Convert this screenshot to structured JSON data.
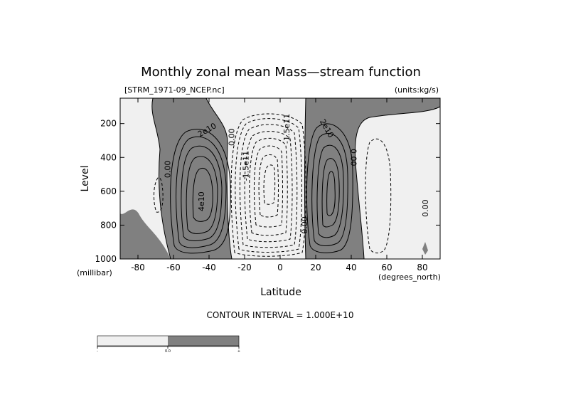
{
  "chart_data": {
    "type": "contour",
    "title": "Monthly zonal mean Mass—stream function",
    "file_label": "[STRM_1971-09_NCEP.nc]",
    "units_label": "(units:kg/s)",
    "xlabel": "Latitude",
    "ylabel": "Level",
    "x_unit_label": "(degrees_north)",
    "y_unit_label": "(millibar)",
    "contour_interval_label": "CONTOUR INTERVAL = 1.000E+10",
    "xlim": [
      -90,
      90
    ],
    "ylim": [
      1000,
      50
    ],
    "x_ticks": [
      {
        "value": -80,
        "label": "-80"
      },
      {
        "value": -60,
        "label": "-60"
      },
      {
        "value": -40,
        "label": "-40"
      },
      {
        "value": -20,
        "label": "-20"
      },
      {
        "value": 0,
        "label": "0"
      },
      {
        "value": 20,
        "label": "20"
      },
      {
        "value": 40,
        "label": "40"
      },
      {
        "value": 60,
        "label": "60"
      },
      {
        "value": 80,
        "label": "80"
      }
    ],
    "y_ticks": [
      {
        "value": 200,
        "label": "200"
      },
      {
        "value": 400,
        "label": "400"
      },
      {
        "value": 600,
        "label": "600"
      },
      {
        "value": 800,
        "label": "800"
      },
      {
        "value": 1000,
        "label": "1000"
      }
    ],
    "contour_labels": [
      {
        "text": "0.00",
        "lat": -63,
        "lev": 470,
        "rotate": -90
      },
      {
        "text": "2e10",
        "lat": -41,
        "lev": 240,
        "rotate": -30
      },
      {
        "text": "4e10",
        "lat": -44,
        "lev": 660,
        "rotate": -90
      },
      {
        "text": "0.00",
        "lat": -27,
        "lev": 280,
        "rotate": -90
      },
      {
        "text": "-1.5e11",
        "lat": -19,
        "lev": 450,
        "rotate": -90
      },
      {
        "text": "-1.5e11",
        "lat": 4,
        "lev": 230,
        "rotate": -90
      },
      {
        "text": "0.00",
        "lat": 14,
        "lev": 800,
        "rotate": -90
      },
      {
        "text": "2e10",
        "lat": 26,
        "lev": 230,
        "rotate": 60
      },
      {
        "text": "0.00",
        "lat": 41,
        "lev": 400,
        "rotate": 90
      },
      {
        "text": "0.00",
        "lat": 82,
        "lev": 700,
        "rotate": -90
      }
    ],
    "shading": {
      "positive_color": "#808080",
      "negative_color": "#f0f0f0"
    },
    "colorbar": {
      "labels": [
        "-",
        "0.0",
        "+"
      ]
    }
  }
}
